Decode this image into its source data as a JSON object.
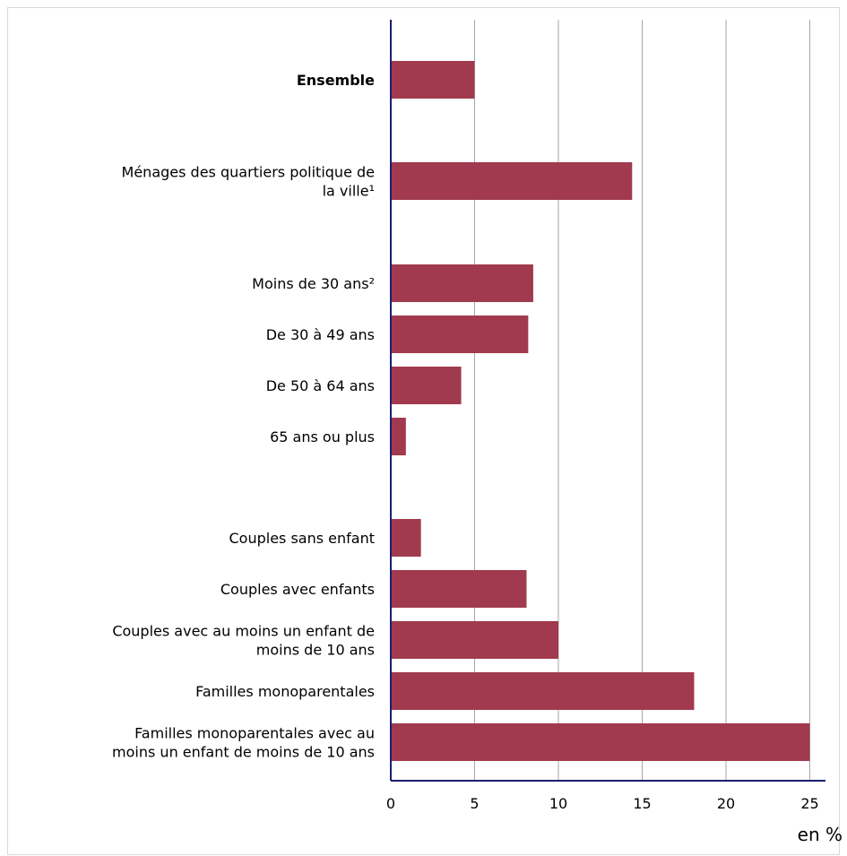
{
  "chart_data": {
    "type": "bar",
    "orientation": "horizontal",
    "categories": [
      "Ensemble",
      "Ménages des quartiers politique de la ville¹",
      "Moins de 30 ans²",
      "De 30 à 49 ans",
      "De 50 à 64 ans",
      "65 ans ou plus",
      "Couples sans enfant",
      "Couples avec enfants",
      "Couples avec au moins un enfant de moins de 10 ans",
      "Familles monoparentales",
      "Familles monoparentales avec au moins un enfant de moins de 10 ans"
    ],
    "label_lines": [
      [
        "Ensemble"
      ],
      [
        "Ménages des quartiers politique de",
        "la ville¹"
      ],
      [
        "Moins de 30 ans²"
      ],
      [
        "De 30 à 49 ans"
      ],
      [
        "De 50 à 64 ans"
      ],
      [
        "65 ans ou plus"
      ],
      [
        "Couples sans enfant"
      ],
      [
        "Couples avec enfants"
      ],
      [
        "Couples avec au moins un enfant de",
        "moins de 10 ans"
      ],
      [
        "Familles monoparentales"
      ],
      [
        "Familles monoparentales avec au",
        "moins un enfant de moins de 10 ans"
      ]
    ],
    "bold_categories": [
      "Ensemble"
    ],
    "values": [
      5.0,
      14.4,
      8.5,
      8.2,
      4.2,
      0.9,
      1.8,
      8.1,
      10.0,
      18.1,
      25.0
    ],
    "xlim": [
      0,
      25
    ],
    "xticks": [
      0,
      5,
      10,
      15,
      20,
      25
    ],
    "xlabel": "en %",
    "ylabel": "",
    "title": "",
    "grid": "vertical",
    "legend": "none",
    "bar_color": "#a13a4e",
    "axis_color": "#1a1f6e",
    "grid_color": "#a6a6a6"
  }
}
